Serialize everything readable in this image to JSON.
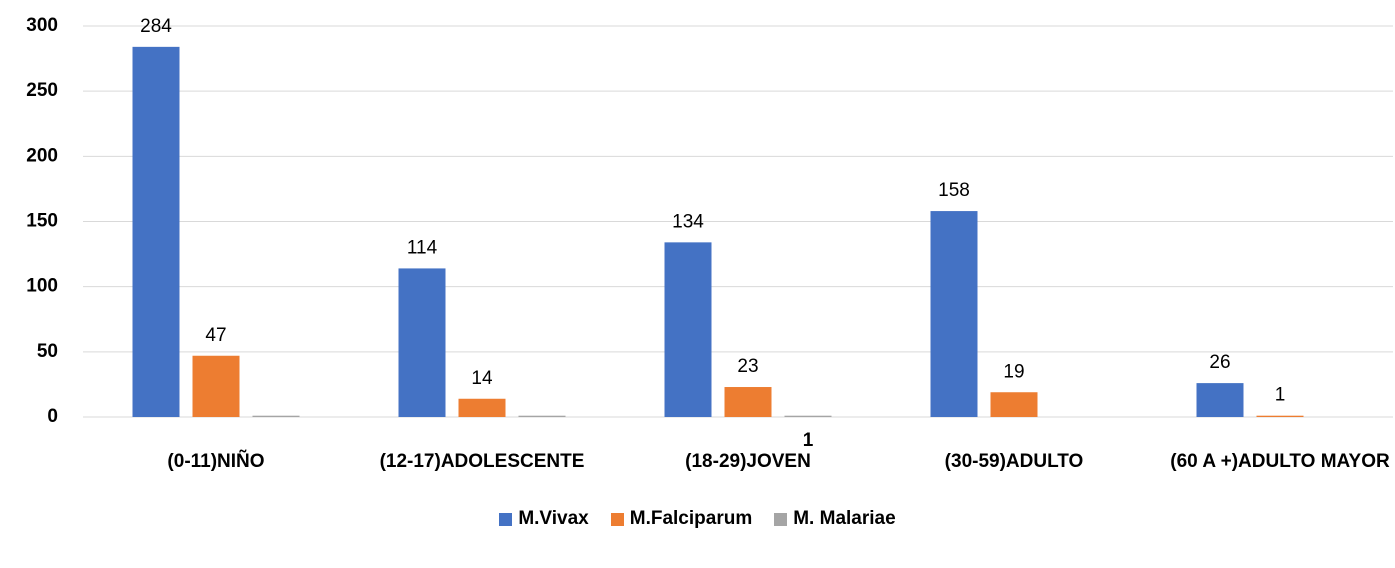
{
  "chart_data": {
    "type": "bar",
    "categories": [
      "(0-11)NIÑO",
      "(12-17)ADOLESCENTE",
      "(18-29)JOVEN",
      "(30-59)ADULTO",
      "(60 A +)ADULTO MAYOR"
    ],
    "series": [
      {
        "name": "M.Vivax",
        "color": "#4472c4",
        "values": [
          284,
          114,
          134,
          158,
          26
        ],
        "data_labels": true
      },
      {
        "name": "M.Falciparum",
        "color": "#ed7d31",
        "values": [
          47,
          14,
          23,
          19,
          1
        ],
        "data_labels": true
      },
      {
        "name": "M. Malariae",
        "color": "#a5a5a5",
        "values": [
          1,
          1,
          1,
          null,
          null
        ],
        "value_labels": [
          null,
          null,
          "1",
          null,
          null
        ]
      }
    ],
    "ylim": [
      0,
      300
    ],
    "yticks": [
      0,
      50,
      100,
      150,
      200,
      250,
      300
    ],
    "grid": true,
    "legend": "bottom"
  }
}
